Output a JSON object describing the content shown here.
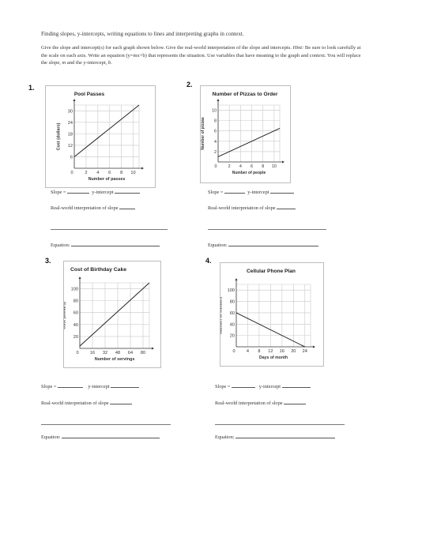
{
  "title": "Finding slopes, y-intercepts, writing equations to lines and interpreting graphs in context.",
  "intro": {
    "p1": "Give the slope and intercept(s) for each graph shown below. Give the real-world interpretation of the slope and intercepts.",
    "hint_label": "Hint:",
    "p2": "Be sure to look carefully at the scale on each axis. Write an equation (y=mx+b) that represents the situation. Use variables that have meaning to the graph and context. You will replace the slope,",
    "m": "m",
    "p3": "and the y-intercept,",
    "b": "b",
    "p4": "."
  },
  "labels": {
    "slope": "Slope =",
    "y_intercept": "y-intercept",
    "interpretation": "Real-world interpretation of slope",
    "equation": "Equation:"
  },
  "problems": [
    {
      "number": "1.",
      "chart_title": "Pool Passes",
      "ylabel": "Cost (dollars)",
      "xlabel": "Number of passes"
    },
    {
      "number": "2.",
      "chart_title": "Number of Pizzas to Order",
      "ylabel": "Number of pizzas",
      "xlabel": "Number of people"
    },
    {
      "number": "3.",
      "chart_title": "Cost of Birthday Cake",
      "ylabel": "Cost (dollars)",
      "xlabel": "Number of servings"
    },
    {
      "number": "4.",
      "chart_title": "Cellular Phone Plan",
      "ylabel": "Number of minutes",
      "xlabel": "Days of month"
    }
  ],
  "chart_data": [
    {
      "type": "line",
      "title": "Pool Passes",
      "xlabel": "Number of passes",
      "ylabel": "Cost (dollars)",
      "x_ticks": [
        "0",
        "2",
        "4",
        "6",
        "8",
        "10"
      ],
      "y_ticks": [
        "6",
        "12",
        "18",
        "24",
        "30"
      ],
      "xlim": [
        0,
        11
      ],
      "ylim": [
        0,
        33
      ],
      "grid": true,
      "series": [
        {
          "x": [
            0,
            11
          ],
          "y": [
            6,
            33
          ]
        }
      ]
    },
    {
      "type": "line",
      "title": "Number of Pizzas to Order",
      "xlabel": "Number of people",
      "ylabel": "Number of pizzas",
      "x_ticks": [
        "0",
        "2",
        "4",
        "6",
        "8",
        "10"
      ],
      "y_ticks": [
        "2",
        "4",
        "6",
        "8",
        "10"
      ],
      "xlim": [
        0,
        11
      ],
      "ylim": [
        0,
        11
      ],
      "grid": true,
      "series": [
        {
          "x": [
            0,
            11
          ],
          "y": [
            1,
            6.5
          ]
        }
      ]
    },
    {
      "type": "line",
      "title": "Cost of Birthday Cake",
      "xlabel": "Number of servings",
      "ylabel": "Cost (dollars)",
      "x_ticks": [
        "0",
        "16",
        "32",
        "48",
        "64",
        "80"
      ],
      "y_ticks": [
        "20",
        "40",
        "60",
        "80",
        "100"
      ],
      "xlim": [
        0,
        88
      ],
      "ylim": [
        0,
        110
      ],
      "grid": true,
      "series": [
        {
          "x": [
            0,
            88
          ],
          "y": [
            4,
            110
          ]
        }
      ]
    },
    {
      "type": "line",
      "title": "Cellular Phone Plan",
      "xlabel": "Days of month",
      "ylabel": "Number of minutes",
      "x_ticks": [
        "0",
        "4",
        "8",
        "12",
        "16",
        "20",
        "24"
      ],
      "y_ticks": [
        "20",
        "40",
        "60",
        "80",
        "100"
      ],
      "xlim": [
        0,
        26
      ],
      "ylim": [
        0,
        110
      ],
      "grid": true,
      "series": [
        {
          "x": [
            0,
            24
          ],
          "y": [
            60,
            0
          ]
        }
      ]
    }
  ]
}
